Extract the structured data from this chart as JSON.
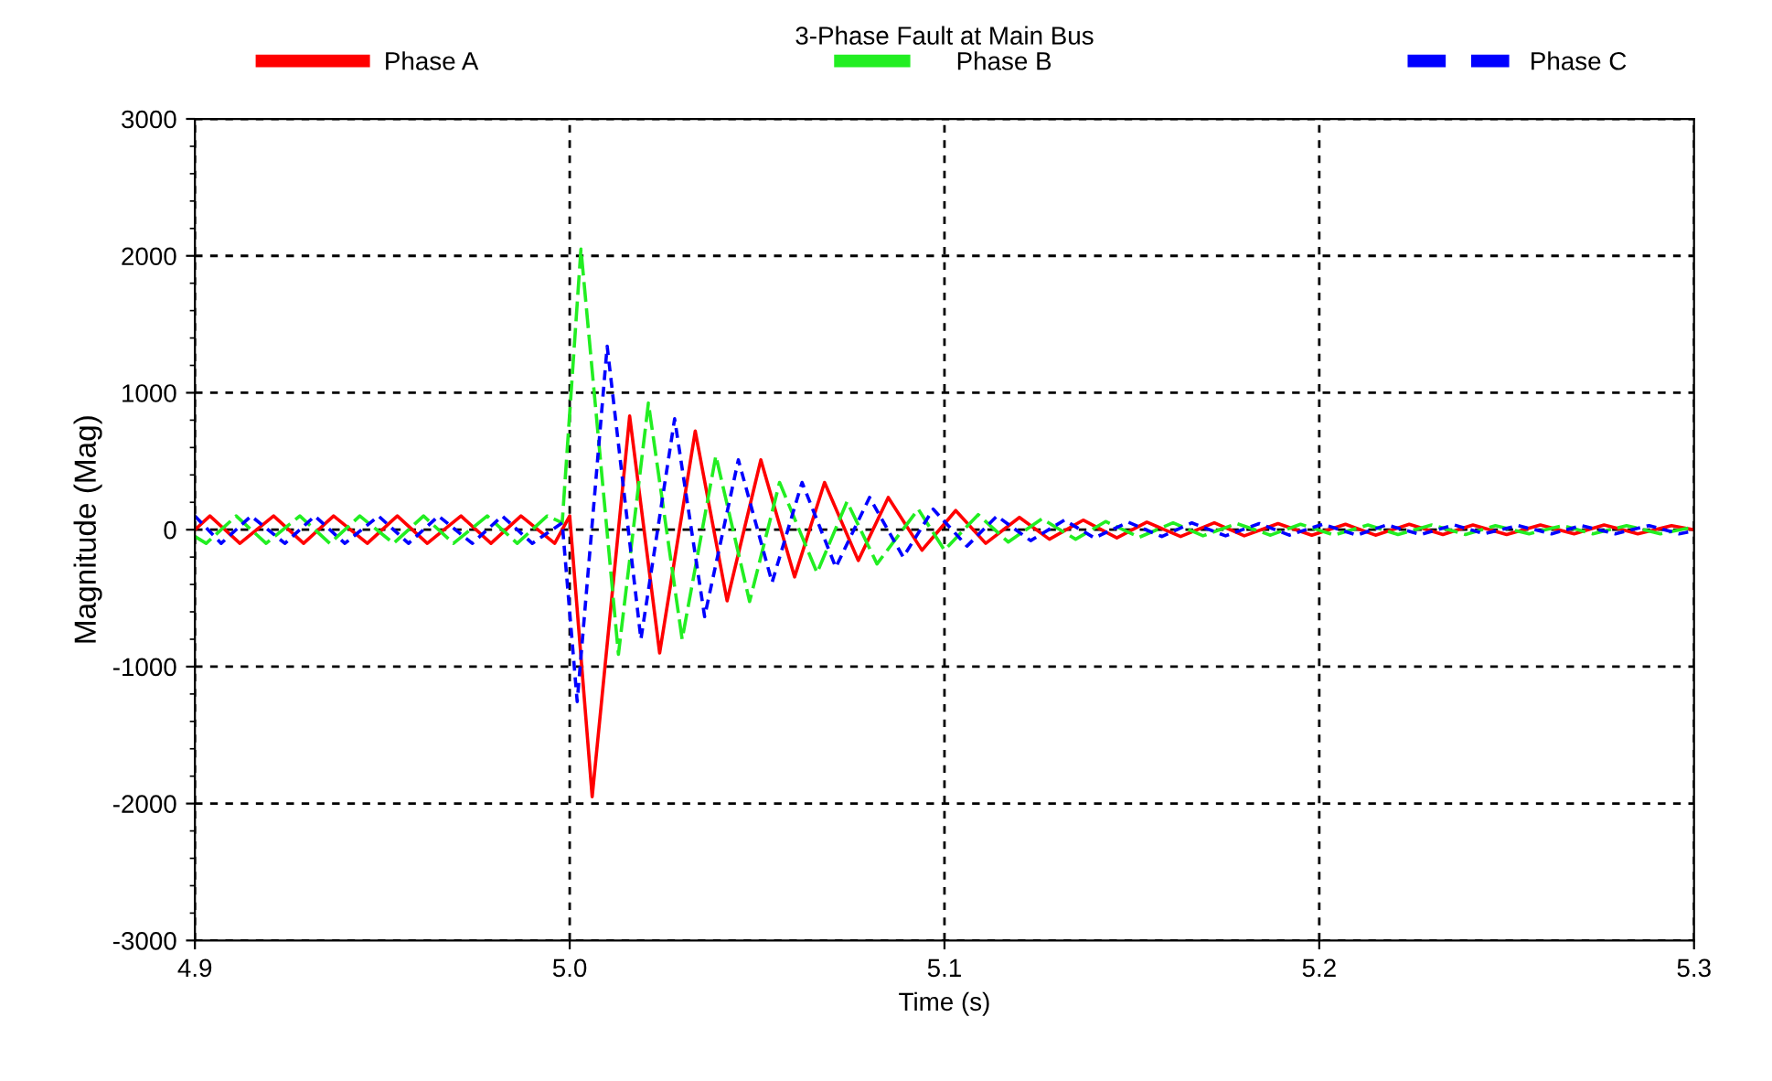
{
  "chart_data": {
    "type": "line",
    "title": "3-Phase Fault at Main Bus",
    "xlabel": "Time (s)",
    "ylabel": "Magnitude (Mag)",
    "xlim": [
      4.9,
      5.3
    ],
    "xticks": [
      {
        "value": 4.9,
        "label": "4.9"
      },
      {
        "value": 5.0,
        "label": "5.0"
      },
      {
        "value": 5.1,
        "label": "5.1"
      },
      {
        "value": 5.2,
        "label": "5.2"
      },
      {
        "value": 5.3,
        "label": "5.3"
      }
    ],
    "ylim": [
      -3000,
      3000
    ],
    "yticks": [
      -3000,
      -2000,
      -1000,
      0,
      1000,
      2000,
      3000
    ],
    "grid": true,
    "legend": "top",
    "marker": "none",
    "series": [
      {
        "name": "Phase A",
        "color": "#ff0000",
        "line_style": "solid",
        "x": [
          4.9,
          4.904,
          4.912,
          4.921,
          4.929,
          4.937,
          4.946,
          4.954,
          4.962,
          4.971,
          4.979,
          4.987,
          4.996,
          5.0,
          5.006,
          5.016,
          5.024,
          5.0335,
          5.042,
          5.051,
          5.06,
          5.068,
          5.077,
          5.085,
          5.094,
          5.103,
          5.111,
          5.12,
          5.128,
          5.137,
          5.146,
          5.154,
          5.163,
          5.172,
          5.18,
          5.189,
          5.198,
          5.207,
          5.215,
          5.224,
          5.233,
          5.241,
          5.25,
          5.259,
          5.268,
          5.276,
          5.285,
          5.294,
          5.3
        ],
        "values": [
          0,
          100,
          -100,
          100,
          -100,
          100,
          -100,
          100,
          -100,
          100,
          -100,
          100,
          -100,
          100,
          -1950,
          830,
          -900,
          720,
          -520,
          510,
          -345,
          345,
          -225,
          235,
          -150,
          140,
          -100,
          90,
          -70,
          70,
          -60,
          55,
          -50,
          50,
          -45,
          45,
          -40,
          40,
          -40,
          40,
          -35,
          35,
          -35,
          35,
          -30,
          35,
          -30,
          30,
          0
        ]
      },
      {
        "name": "Phase B",
        "color": "#22ee22",
        "line_style": "dashed",
        "x": [
          4.9,
          4.903,
          4.911,
          4.919,
          4.928,
          4.936,
          4.944,
          4.953,
          4.961,
          4.969,
          4.978,
          4.986,
          4.994,
          4.998,
          5.003,
          5.013,
          5.021,
          5.03,
          5.039,
          5.048,
          5.056,
          5.066,
          5.074,
          5.082,
          5.093,
          5.1,
          5.109,
          5.117,
          5.126,
          5.135,
          5.143,
          5.152,
          5.161,
          5.169,
          5.178,
          5.187,
          5.195,
          5.204,
          5.213,
          5.221,
          5.23,
          5.239,
          5.247,
          5.256,
          5.265,
          5.273,
          5.282,
          5.291,
          5.3
        ],
        "values": [
          -50,
          -100,
          100,
          -100,
          100,
          -100,
          100,
          -100,
          100,
          -100,
          100,
          -100,
          100,
          50,
          2050,
          -910,
          925,
          -800,
          540,
          -525,
          345,
          -315,
          205,
          -250,
          150,
          -150,
          110,
          -90,
          80,
          -70,
          60,
          -55,
          50,
          -45,
          45,
          -40,
          40,
          -40,
          35,
          -35,
          35,
          -35,
          30,
          -30,
          30,
          -30,
          30,
          -30,
          20
        ]
      },
      {
        "name": "Phase C",
        "color": "#0000ff",
        "line_style": "dotted",
        "x": [
          4.9,
          4.907,
          4.915,
          4.924,
          4.932,
          4.94,
          4.949,
          4.957,
          4.965,
          4.974,
          4.982,
          4.99,
          4.998,
          5.002,
          5.01,
          5.019,
          5.028,
          5.036,
          5.045,
          5.054,
          5.062,
          5.071,
          5.08,
          5.089,
          5.097,
          5.106,
          5.114,
          5.123,
          5.132,
          5.14,
          5.149,
          5.158,
          5.166,
          5.175,
          5.184,
          5.192,
          5.201,
          5.21,
          5.218,
          5.227,
          5.236,
          5.244,
          5.253,
          5.262,
          5.27,
          5.279,
          5.288,
          5.296,
          5.3
        ],
        "values": [
          100,
          -100,
          100,
          -100,
          100,
          -100,
          100,
          -100,
          100,
          -100,
          100,
          -100,
          50,
          -1255,
          1340,
          -800,
          810,
          -635,
          510,
          -385,
          345,
          -275,
          235,
          -200,
          150,
          -120,
          100,
          -80,
          70,
          -60,
          55,
          -50,
          50,
          -45,
          45,
          -40,
          40,
          -40,
          35,
          -35,
          35,
          -30,
          30,
          -30,
          30,
          -30,
          30,
          -30,
          -10
        ]
      }
    ]
  }
}
